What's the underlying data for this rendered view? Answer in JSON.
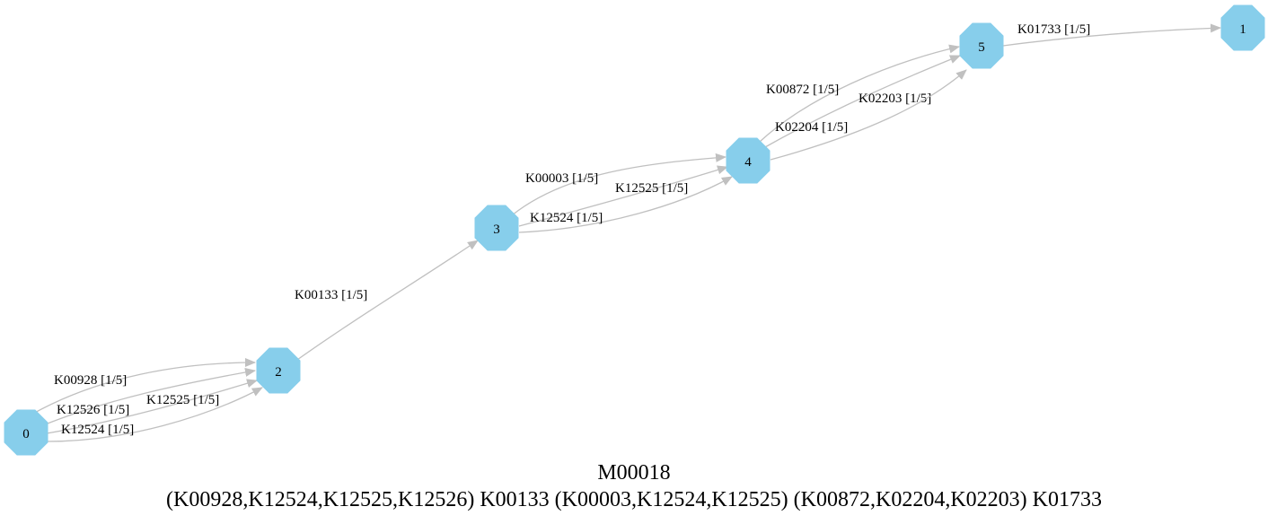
{
  "diagram": {
    "title": "M00018",
    "definition": "(K00928,K12524,K12525,K12526) K00133 (K00003,K12524,K12525) (K00872,K02204,K02203) K01733",
    "colors": {
      "node_fill": "#87ceeb",
      "edge": "#c0c0c0",
      "text": "#000000"
    },
    "nodes": [
      {
        "id": "0",
        "label": "0"
      },
      {
        "id": "2",
        "label": "2"
      },
      {
        "id": "3",
        "label": "3"
      },
      {
        "id": "4",
        "label": "4"
      },
      {
        "id": "5",
        "label": "5"
      },
      {
        "id": "1",
        "label": "1"
      }
    ],
    "edges": [
      {
        "from": "0",
        "to": "2",
        "label": "K00928 [1/5]"
      },
      {
        "from": "0",
        "to": "2",
        "label": "K12526 [1/5]"
      },
      {
        "from": "0",
        "to": "2",
        "label": "K12525 [1/5]"
      },
      {
        "from": "0",
        "to": "2",
        "label": "K12524 [1/5]"
      },
      {
        "from": "2",
        "to": "3",
        "label": "K00133 [1/5]"
      },
      {
        "from": "3",
        "to": "4",
        "label": "K00003 [1/5]"
      },
      {
        "from": "3",
        "to": "4",
        "label": "K12525 [1/5]"
      },
      {
        "from": "3",
        "to": "4",
        "label": "K12524 [1/5]"
      },
      {
        "from": "4",
        "to": "5",
        "label": "K00872 [1/5]"
      },
      {
        "from": "4",
        "to": "5",
        "label": "K02203 [1/5]"
      },
      {
        "from": "4",
        "to": "5",
        "label": "K02204 [1/5]"
      },
      {
        "from": "5",
        "to": "1",
        "label": "K01733 [1/5]"
      }
    ]
  }
}
